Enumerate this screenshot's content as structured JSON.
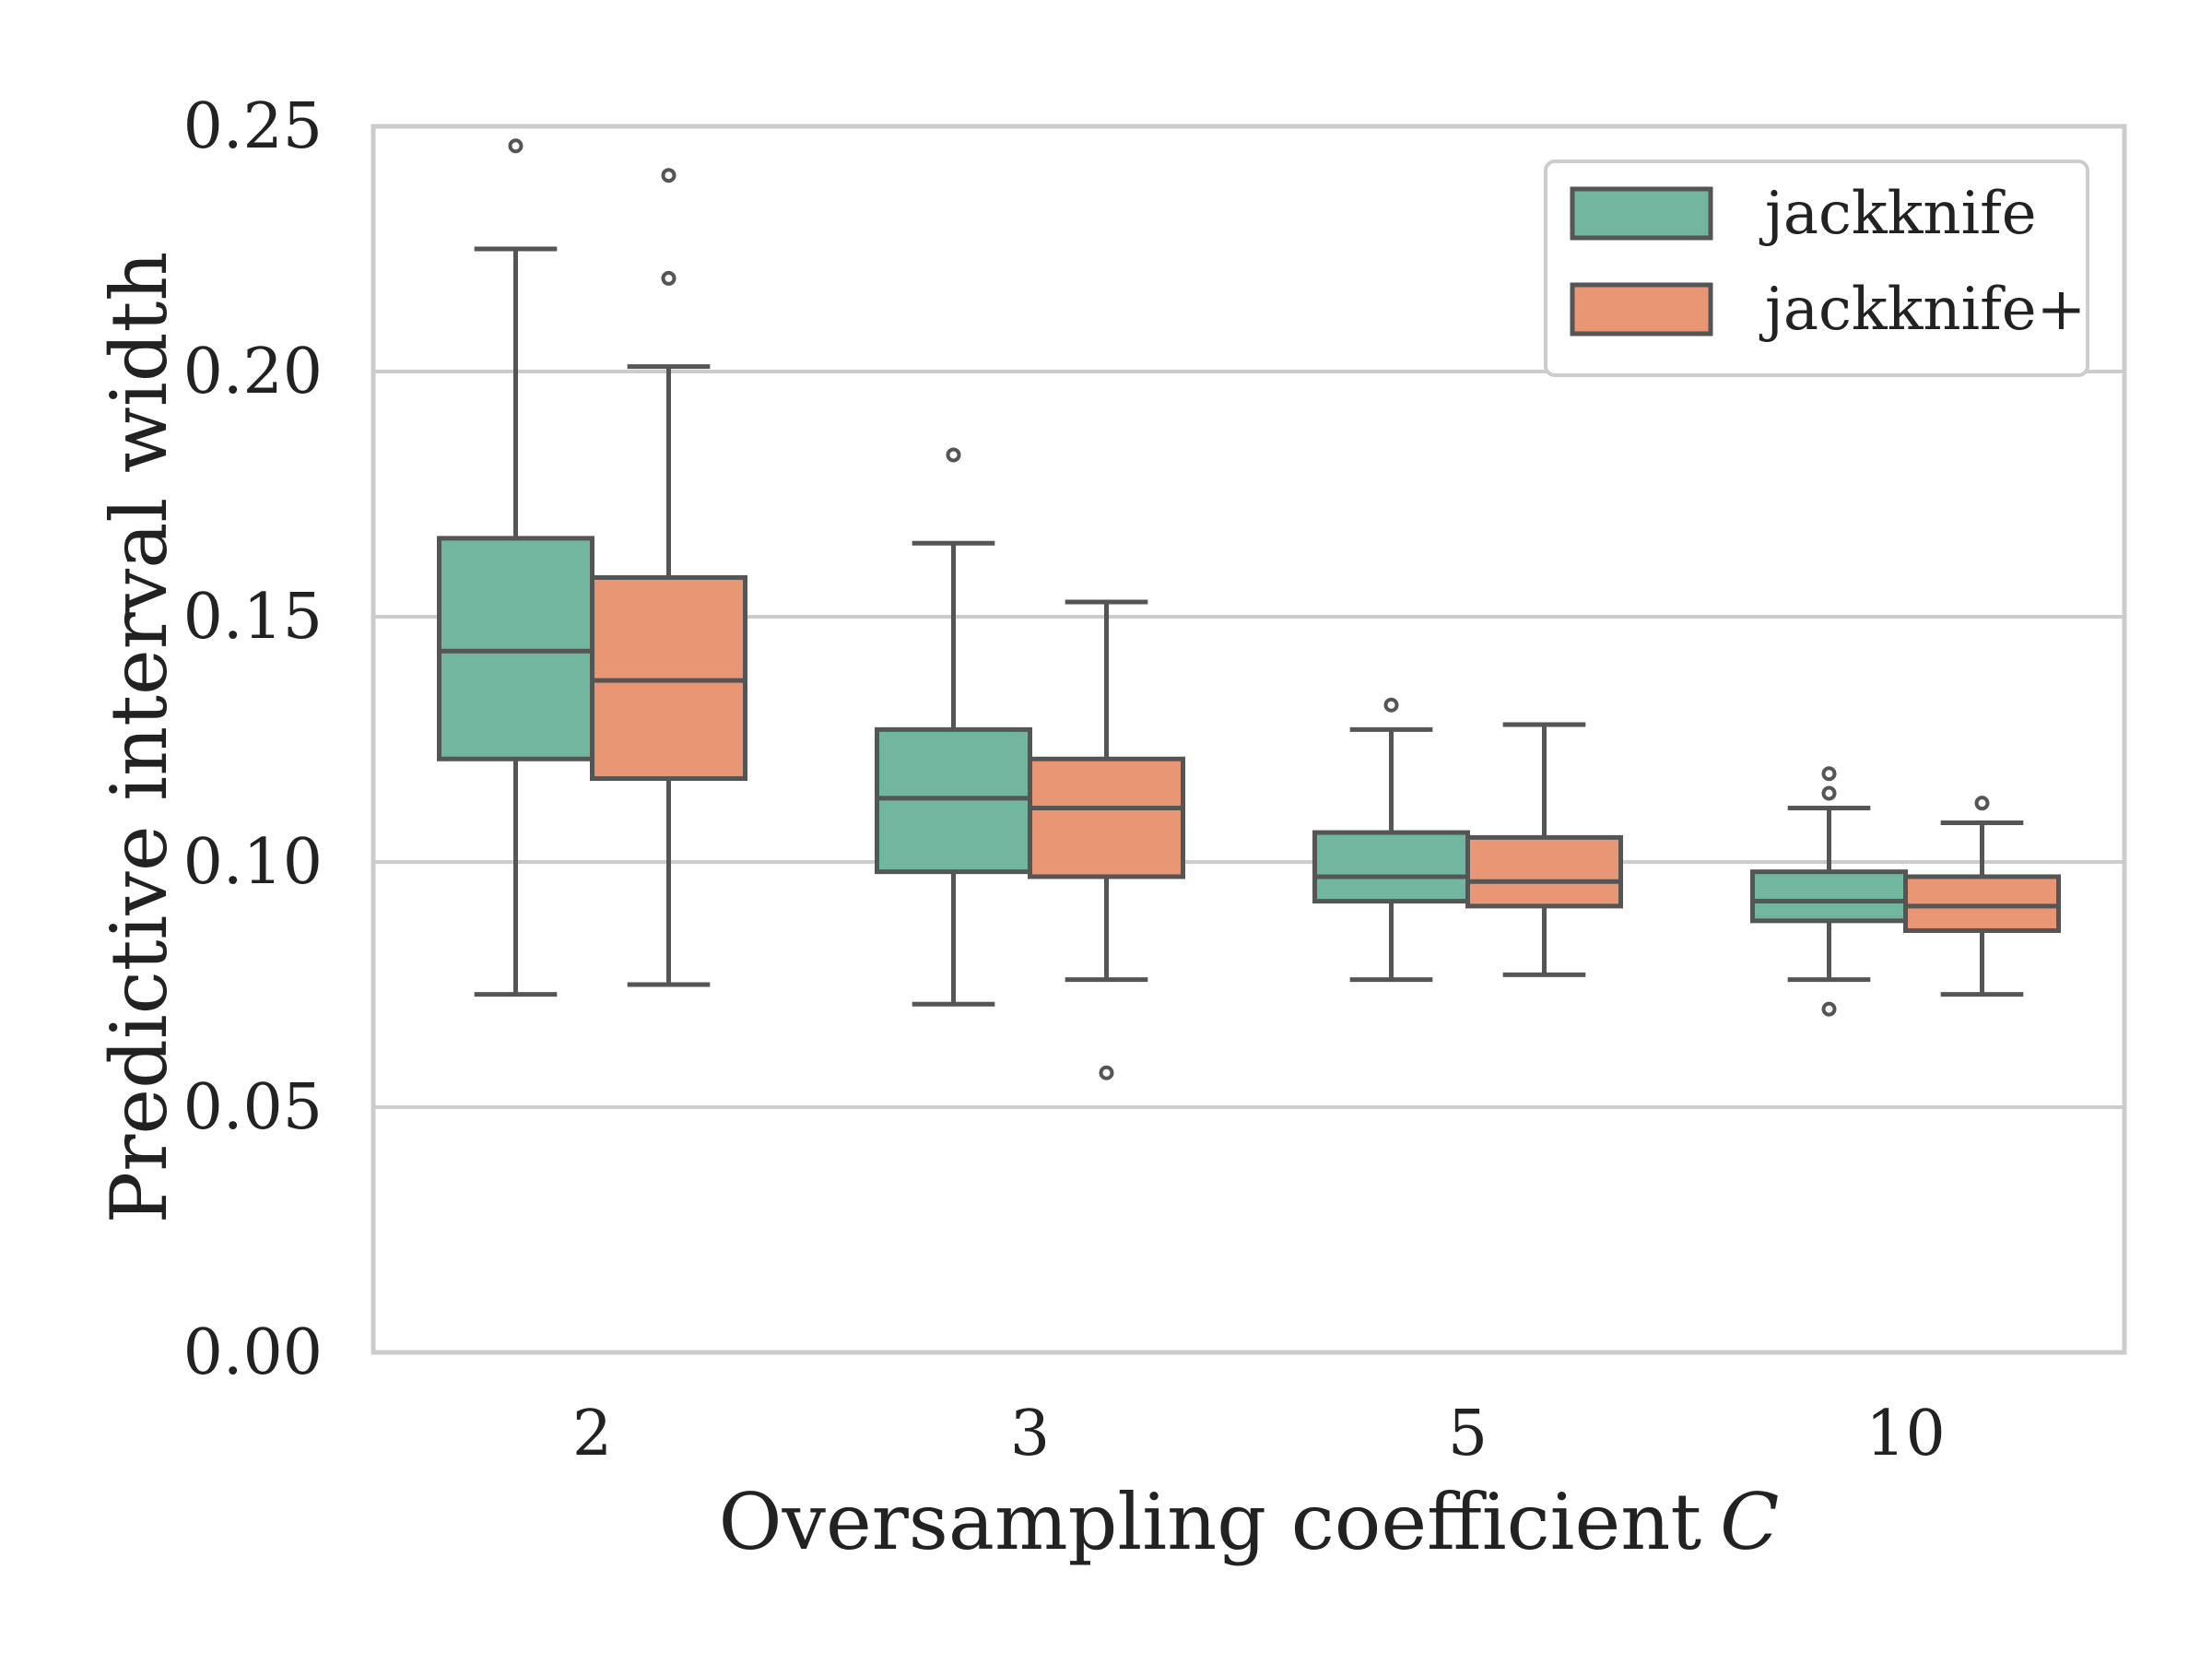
{
  "chart_data": {
    "type": "boxplot",
    "title": "",
    "xlabel": "Oversampling coefficient",
    "xlabel_var": "C",
    "ylabel": "Predictive interval width",
    "ylim": [
      0.0,
      0.25
    ],
    "yticks": [
      "0.00",
      "0.05",
      "0.10",
      "0.15",
      "0.20",
      "0.25"
    ],
    "ytick_values": [
      0.0,
      0.05,
      0.1,
      0.15,
      0.2,
      0.25
    ],
    "grid": "horizontal",
    "legend_position": "top-right",
    "categories": [
      "2",
      "3",
      "5",
      "10"
    ],
    "series": [
      {
        "name": "jackknife",
        "color": "#73b69f",
        "boxes": [
          {
            "whislo": 0.073,
            "q1": 0.121,
            "med": 0.143,
            "q3": 0.166,
            "whishi": 0.225,
            "fliers": [
              0.246
            ]
          },
          {
            "whislo": 0.071,
            "q1": 0.098,
            "med": 0.113,
            "q3": 0.127,
            "whishi": 0.165,
            "fliers": [
              0.183
            ]
          },
          {
            "whislo": 0.076,
            "q1": 0.092,
            "med": 0.097,
            "q3": 0.106,
            "whishi": 0.127,
            "fliers": [
              0.132
            ]
          },
          {
            "whislo": 0.076,
            "q1": 0.088,
            "med": 0.092,
            "q3": 0.098,
            "whishi": 0.111,
            "fliers": [
              0.114,
              0.118,
              0.07
            ]
          }
        ]
      },
      {
        "name": "jackknife+",
        "color": "#e89673",
        "boxes": [
          {
            "whislo": 0.075,
            "q1": 0.117,
            "med": 0.137,
            "q3": 0.158,
            "whishi": 0.201,
            "fliers": [
              0.219,
              0.24
            ]
          },
          {
            "whislo": 0.076,
            "q1": 0.097,
            "med": 0.111,
            "q3": 0.121,
            "whishi": 0.153,
            "fliers": [
              0.057
            ]
          },
          {
            "whislo": 0.077,
            "q1": 0.091,
            "med": 0.096,
            "q3": 0.105,
            "whishi": 0.128,
            "fliers": []
          },
          {
            "whislo": 0.073,
            "q1": 0.086,
            "med": 0.091,
            "q3": 0.097,
            "whishi": 0.108,
            "fliers": [
              0.112
            ]
          }
        ]
      }
    ]
  }
}
